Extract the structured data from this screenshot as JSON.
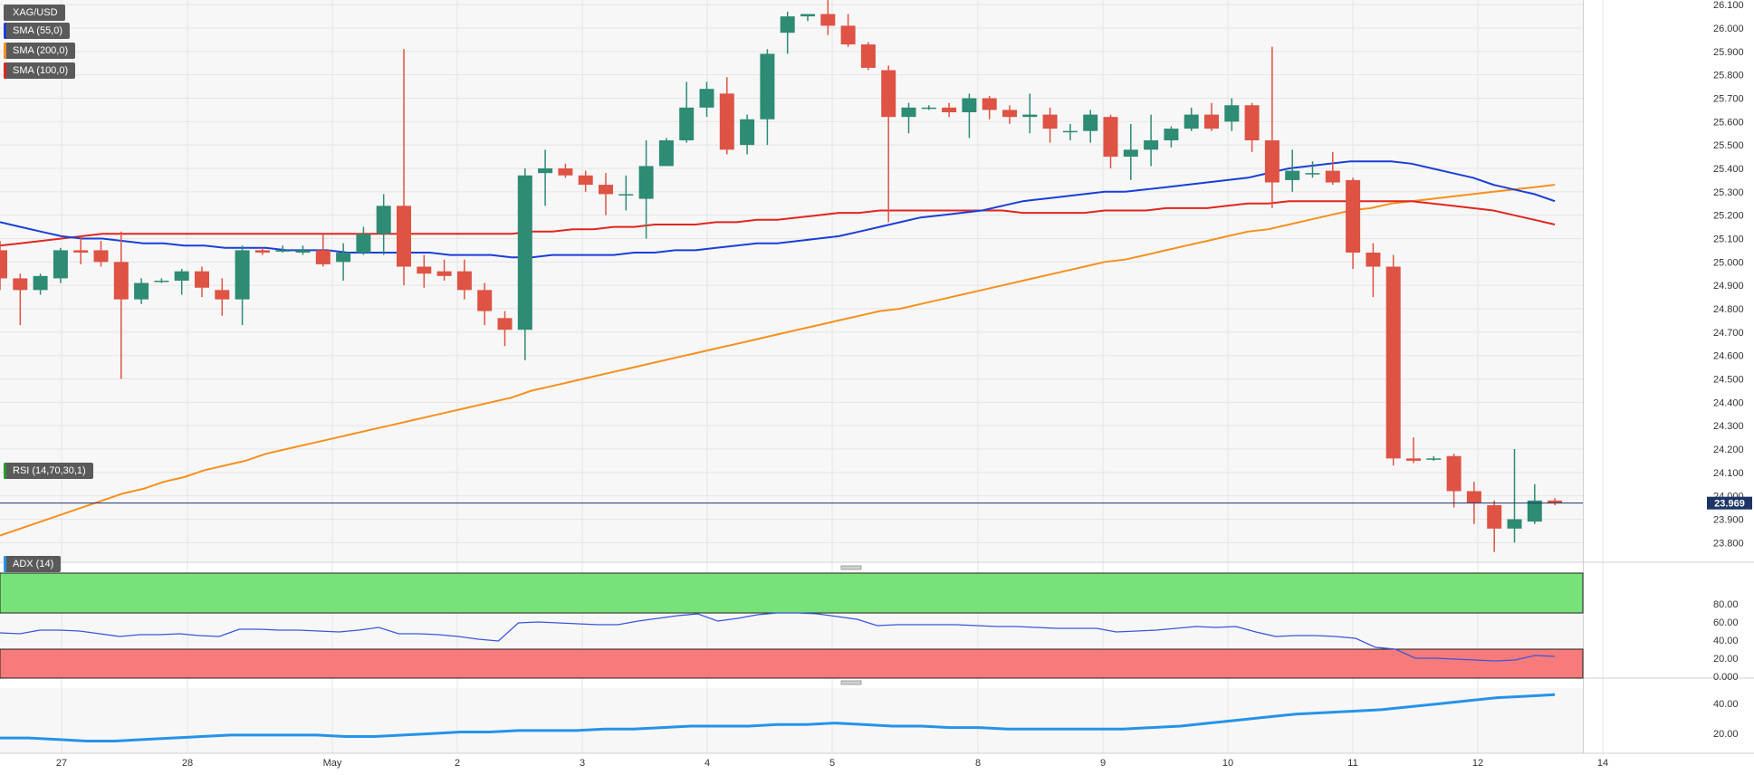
{
  "legend": {
    "symbol": "XAG/USD",
    "sma55": "SMA (55,0)",
    "sma200": "SMA (200,0)",
    "sma100": "SMA (100,0)",
    "rsi": "RSI (14,70,30,1)",
    "adx": "ADX (14)"
  },
  "colors": {
    "up": "#2e8b74",
    "down": "#de5344",
    "sma55": "#1a3fd6",
    "sma100": "#e0261f",
    "sma200": "#f5901e",
    "rsi_line": "#3d55d8",
    "adx_line": "#2693e8",
    "overbought_zone": "#78e27a",
    "oversold_zone": "#f77b7b",
    "last_price_bg": "#1c3466"
  },
  "chart_data": {
    "type": "candlestick",
    "symbol": "XAG/USD",
    "last_price": "23.969",
    "x_tick_labels": [
      "27",
      "28",
      "May",
      "2",
      "3",
      "4",
      "5",
      "8",
      "9",
      "10",
      "11",
      "12",
      "14"
    ],
    "price_axis": {
      "ylim": [
        23.72,
        26.12
      ],
      "ticks": [
        "26.100",
        "26.000",
        "25.900",
        "25.800",
        "25.700",
        "25.600",
        "25.500",
        "25.400",
        "25.300",
        "25.200",
        "25.100",
        "25.000",
        "24.900",
        "24.800",
        "24.700",
        "24.600",
        "24.500",
        "24.400",
        "24.300",
        "24.200",
        "24.100",
        "24.000",
        "23.900",
        "23.800"
      ]
    },
    "candles": [
      {
        "o": 25.05,
        "h": 25.09,
        "l": 24.88,
        "c": 24.93
      },
      {
        "o": 24.93,
        "h": 24.95,
        "l": 24.73,
        "c": 24.88
      },
      {
        "o": 24.88,
        "h": 24.95,
        "l": 24.86,
        "c": 24.94
      },
      {
        "o": 24.93,
        "h": 25.06,
        "l": 24.91,
        "c": 25.05
      },
      {
        "o": 25.05,
        "h": 25.11,
        "l": 24.99,
        "c": 25.04
      },
      {
        "o": 25.05,
        "h": 25.09,
        "l": 24.98,
        "c": 25.0
      },
      {
        "o": 25.0,
        "h": 25.13,
        "l": 24.5,
        "c": 24.84
      },
      {
        "o": 24.84,
        "h": 24.93,
        "l": 24.82,
        "c": 24.91
      },
      {
        "o": 24.92,
        "h": 24.93,
        "l": 24.91,
        "c": 24.92
      },
      {
        "o": 24.92,
        "h": 24.97,
        "l": 24.86,
        "c": 24.96
      },
      {
        "o": 24.96,
        "h": 24.98,
        "l": 24.85,
        "c": 24.89
      },
      {
        "o": 24.88,
        "h": 24.93,
        "l": 24.77,
        "c": 24.84
      },
      {
        "o": 24.84,
        "h": 25.07,
        "l": 24.73,
        "c": 25.05
      },
      {
        "o": 25.05,
        "h": 25.06,
        "l": 25.03,
        "c": 25.04
      },
      {
        "o": 25.05,
        "h": 25.07,
        "l": 25.04,
        "c": 25.05
      },
      {
        "o": 25.04,
        "h": 25.07,
        "l": 25.03,
        "c": 25.05
      },
      {
        "o": 25.05,
        "h": 25.12,
        "l": 24.98,
        "c": 24.99
      },
      {
        "o": 25.0,
        "h": 25.08,
        "l": 24.92,
        "c": 25.04
      },
      {
        "o": 25.04,
        "h": 25.15,
        "l": 25.03,
        "c": 25.12
      },
      {
        "o": 25.12,
        "h": 25.29,
        "l": 25.03,
        "c": 25.24
      },
      {
        "o": 25.24,
        "h": 25.91,
        "l": 24.9,
        "c": 24.98
      },
      {
        "o": 24.98,
        "h": 25.03,
        "l": 24.89,
        "c": 24.95
      },
      {
        "o": 24.96,
        "h": 25.01,
        "l": 24.92,
        "c": 24.94
      },
      {
        "o": 24.96,
        "h": 25.01,
        "l": 24.84,
        "c": 24.88
      },
      {
        "o": 24.88,
        "h": 24.91,
        "l": 24.73,
        "c": 24.79
      },
      {
        "o": 24.76,
        "h": 24.79,
        "l": 24.64,
        "c": 24.71
      },
      {
        "o": 24.71,
        "h": 25.4,
        "l": 24.58,
        "c": 25.37
      },
      {
        "o": 25.38,
        "h": 25.48,
        "l": 25.24,
        "c": 25.4
      },
      {
        "o": 25.4,
        "h": 25.42,
        "l": 25.36,
        "c": 25.37
      },
      {
        "o": 25.37,
        "h": 25.39,
        "l": 25.3,
        "c": 25.33
      },
      {
        "o": 25.33,
        "h": 25.38,
        "l": 25.2,
        "c": 25.29
      },
      {
        "o": 25.29,
        "h": 25.37,
        "l": 25.22,
        "c": 25.29
      },
      {
        "o": 25.27,
        "h": 25.52,
        "l": 25.1,
        "c": 25.41
      },
      {
        "o": 25.41,
        "h": 25.53,
        "l": 25.41,
        "c": 25.52
      },
      {
        "o": 25.52,
        "h": 25.77,
        "l": 25.51,
        "c": 25.66
      },
      {
        "o": 25.66,
        "h": 25.77,
        "l": 25.62,
        "c": 25.74
      },
      {
        "o": 25.72,
        "h": 25.79,
        "l": 25.46,
        "c": 25.48
      },
      {
        "o": 25.5,
        "h": 25.63,
        "l": 25.46,
        "c": 25.61
      },
      {
        "o": 25.61,
        "h": 25.91,
        "l": 25.5,
        "c": 25.89
      },
      {
        "o": 25.98,
        "h": 26.07,
        "l": 25.89,
        "c": 26.05
      },
      {
        "o": 26.05,
        "h": 26.06,
        "l": 26.03,
        "c": 26.06
      },
      {
        "o": 26.06,
        "h": 26.13,
        "l": 25.97,
        "c": 26.01
      },
      {
        "o": 26.01,
        "h": 26.06,
        "l": 25.92,
        "c": 25.93
      },
      {
        "o": 25.93,
        "h": 25.94,
        "l": 25.82,
        "c": 25.83
      },
      {
        "o": 25.82,
        "h": 25.84,
        "l": 25.17,
        "c": 25.62
      },
      {
        "o": 25.62,
        "h": 25.68,
        "l": 25.55,
        "c": 25.66
      },
      {
        "o": 25.66,
        "h": 25.67,
        "l": 25.65,
        "c": 25.66
      },
      {
        "o": 25.66,
        "h": 25.68,
        "l": 25.62,
        "c": 25.64
      },
      {
        "o": 25.64,
        "h": 25.72,
        "l": 25.53,
        "c": 25.7
      },
      {
        "o": 25.7,
        "h": 25.71,
        "l": 25.61,
        "c": 25.65
      },
      {
        "o": 25.65,
        "h": 25.67,
        "l": 25.59,
        "c": 25.62
      },
      {
        "o": 25.62,
        "h": 25.72,
        "l": 25.55,
        "c": 25.63
      },
      {
        "o": 25.63,
        "h": 25.66,
        "l": 25.51,
        "c": 25.57
      },
      {
        "o": 25.56,
        "h": 25.59,
        "l": 25.52,
        "c": 25.56
      },
      {
        "o": 25.56,
        "h": 25.65,
        "l": 25.51,
        "c": 25.63
      },
      {
        "o": 25.62,
        "h": 25.63,
        "l": 25.4,
        "c": 25.45
      },
      {
        "o": 25.45,
        "h": 25.59,
        "l": 25.35,
        "c": 25.48
      },
      {
        "o": 25.48,
        "h": 25.63,
        "l": 25.41,
        "c": 25.52
      },
      {
        "o": 25.52,
        "h": 25.58,
        "l": 25.49,
        "c": 25.57
      },
      {
        "o": 25.57,
        "h": 25.66,
        "l": 25.56,
        "c": 25.63
      },
      {
        "o": 25.63,
        "h": 25.68,
        "l": 25.56,
        "c": 25.57
      },
      {
        "o": 25.6,
        "h": 25.7,
        "l": 25.56,
        "c": 25.67
      },
      {
        "o": 25.67,
        "h": 25.68,
        "l": 25.47,
        "c": 25.52
      },
      {
        "o": 25.52,
        "h": 25.92,
        "l": 25.23,
        "c": 25.34
      },
      {
        "o": 25.35,
        "h": 25.48,
        "l": 25.3,
        "c": 25.39
      },
      {
        "o": 25.38,
        "h": 25.43,
        "l": 25.36,
        "c": 25.38
      },
      {
        "o": 25.39,
        "h": 25.47,
        "l": 25.33,
        "c": 25.34
      },
      {
        "o": 25.35,
        "h": 25.36,
        "l": 24.97,
        "c": 25.04
      },
      {
        "o": 25.04,
        "h": 25.08,
        "l": 24.85,
        "c": 24.98
      },
      {
        "o": 24.98,
        "h": 25.03,
        "l": 24.13,
        "c": 24.16
      },
      {
        "o": 24.16,
        "h": 24.25,
        "l": 24.14,
        "c": 24.15
      },
      {
        "o": 24.16,
        "h": 24.17,
        "l": 24.15,
        "c": 24.16
      },
      {
        "o": 24.17,
        "h": 24.18,
        "l": 23.95,
        "c": 24.02
      },
      {
        "o": 24.02,
        "h": 24.06,
        "l": 23.88,
        "c": 23.97
      },
      {
        "o": 23.96,
        "h": 23.98,
        "l": 23.76,
        "c": 23.86
      },
      {
        "o": 23.86,
        "h": 24.2,
        "l": 23.8,
        "c": 23.9
      },
      {
        "o": 23.89,
        "h": 24.05,
        "l": 23.88,
        "c": 23.98
      },
      {
        "o": 23.98,
        "h": 23.99,
        "l": 23.96,
        "c": 23.97
      }
    ],
    "sma55": [
      25.17,
      25.15,
      25.13,
      25.11,
      25.1,
      25.1,
      25.09,
      25.08,
      25.08,
      25.07,
      25.07,
      25.06,
      25.06,
      25.06,
      25.05,
      25.05,
      25.05,
      25.04,
      25.04,
      25.04,
      25.04,
      25.04,
      25.03,
      25.03,
      25.03,
      25.02,
      25.02,
      25.03,
      25.03,
      25.03,
      25.03,
      25.04,
      25.04,
      25.05,
      25.05,
      25.06,
      25.07,
      25.08,
      25.08,
      25.09,
      25.1,
      25.11,
      25.13,
      25.15,
      25.17,
      25.19,
      25.2,
      25.21,
      25.22,
      25.24,
      25.26,
      25.27,
      25.28,
      25.29,
      25.3,
      25.3,
      25.31,
      25.32,
      25.33,
      25.34,
      25.35,
      25.36,
      25.38,
      25.4,
      25.41,
      25.42,
      25.43,
      25.43,
      25.43,
      25.42,
      25.4,
      25.38,
      25.36,
      25.33,
      25.31,
      25.29,
      25.26
    ],
    "sma100": [
      25.07,
      25.08,
      25.09,
      25.1,
      25.11,
      25.12,
      25.12,
      25.12,
      25.12,
      25.12,
      25.12,
      25.12,
      25.12,
      25.12,
      25.12,
      25.12,
      25.12,
      25.12,
      25.12,
      25.12,
      25.12,
      25.12,
      25.12,
      25.12,
      25.12,
      25.12,
      25.13,
      25.13,
      25.14,
      25.14,
      25.15,
      25.15,
      25.16,
      25.16,
      25.16,
      25.17,
      25.17,
      25.18,
      25.18,
      25.19,
      25.2,
      25.21,
      25.21,
      25.22,
      25.22,
      25.22,
      25.22,
      25.22,
      25.22,
      25.22,
      25.21,
      25.21,
      25.21,
      25.21,
      25.22,
      25.22,
      25.22,
      25.23,
      25.23,
      25.23,
      25.24,
      25.25,
      25.25,
      25.26,
      25.26,
      25.26,
      25.26,
      25.26,
      25.26,
      25.26,
      25.25,
      25.24,
      25.23,
      25.22,
      25.2,
      25.18,
      25.16
    ],
    "sma200": [
      23.83,
      23.86,
      23.89,
      23.92,
      23.95,
      23.98,
      24.01,
      24.03,
      24.06,
      24.08,
      24.11,
      24.13,
      24.15,
      24.18,
      24.2,
      24.22,
      24.24,
      24.26,
      24.28,
      24.3,
      24.32,
      24.34,
      24.36,
      24.38,
      24.4,
      24.42,
      24.45,
      24.47,
      24.49,
      24.51,
      24.53,
      24.55,
      24.57,
      24.59,
      24.61,
      24.63,
      24.65,
      24.67,
      24.69,
      24.71,
      24.73,
      24.75,
      24.77,
      24.79,
      24.8,
      24.82,
      24.84,
      24.86,
      24.88,
      24.9,
      24.92,
      24.94,
      24.96,
      24.98,
      25.0,
      25.01,
      25.03,
      25.05,
      25.07,
      25.09,
      25.11,
      25.13,
      25.14,
      25.16,
      25.18,
      25.2,
      25.22,
      25.23,
      25.25,
      25.26,
      25.27,
      25.28,
      25.29,
      25.3,
      25.31,
      25.32,
      25.33
    ],
    "rsi": {
      "ylim": [
        0,
        100
      ],
      "ticks": [
        "80.00",
        "60.00",
        "40.00",
        "20.00",
        "0.000"
      ],
      "overbought": 70,
      "oversold": 30,
      "values": [
        48,
        47,
        51,
        51,
        50,
        47,
        44,
        46,
        46,
        47,
        45,
        44,
        52,
        52,
        51,
        51,
        50,
        49,
        51,
        54,
        47,
        47,
        46,
        44,
        41,
        39,
        59,
        60,
        59,
        58,
        57,
        57,
        61,
        64,
        67,
        69,
        61,
        64,
        68,
        70,
        70,
        69,
        66,
        63,
        56,
        57,
        57,
        57,
        57,
        56,
        55,
        55,
        54,
        53,
        53,
        53,
        49,
        50,
        51,
        53,
        55,
        54,
        55,
        49,
        44,
        45,
        45,
        44,
        42,
        32,
        30,
        20,
        20,
        19,
        18,
        17,
        18,
        23,
        22
      ]
    },
    "adx": {
      "ticks": [
        "40.00",
        "20.00"
      ],
      "values": [
        17,
        17,
        16,
        15,
        15,
        16,
        17,
        18,
        19,
        19,
        19,
        19,
        18,
        18,
        19,
        20,
        21,
        21,
        22,
        22,
        22,
        23,
        23,
        24,
        25,
        25,
        25,
        26,
        26,
        27,
        26,
        25,
        25,
        24,
        24,
        23,
        23,
        23,
        23,
        23,
        24,
        25,
        27,
        29,
        31,
        33,
        34,
        35,
        36,
        38,
        40,
        42,
        44,
        45,
        46
      ]
    }
  }
}
